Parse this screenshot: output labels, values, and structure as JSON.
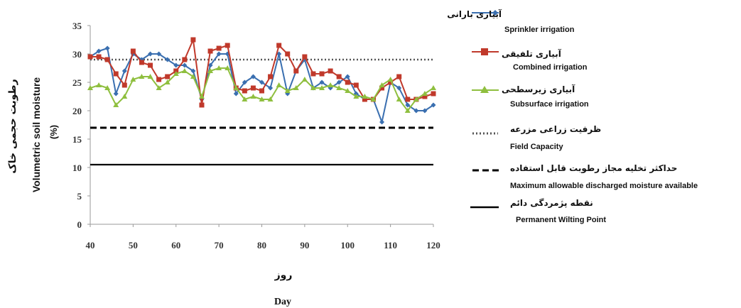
{
  "chart_data": {
    "type": "line",
    "xlabel_fa": "روز",
    "xlabel_en": "Day",
    "ylabel_fa": "رطوبت حجمی خاک",
    "ylabel_en": "Volumetric soil moisture",
    "ylabel_unit": "(%)",
    "xlim": [
      40,
      120
    ],
    "ylim": [
      0,
      35
    ],
    "x_ticks": [
      40,
      50,
      60,
      70,
      80,
      90,
      100,
      110,
      120
    ],
    "y_ticks": [
      0,
      5,
      10,
      15,
      20,
      25,
      30,
      35
    ],
    "grid": false,
    "legend_position": "right",
    "series": [
      {
        "name": "آبیاری بارانی",
        "name_en": "Sprinkler irrigation",
        "color": "#3a6fb0",
        "marker": "diamond",
        "x": [
          40,
          42,
          44,
          46,
          48,
          50,
          52,
          54,
          56,
          58,
          60,
          62,
          64,
          66,
          68,
          70,
          72,
          74,
          76,
          78,
          80,
          82,
          84,
          86,
          88,
          90,
          92,
          94,
          96,
          98,
          100,
          102,
          104,
          106,
          108,
          110,
          112,
          114,
          116,
          118,
          120
        ],
        "y": [
          29.5,
          30.5,
          31,
          23,
          27,
          30,
          29,
          30,
          30,
          29,
          28,
          28,
          27,
          22,
          28,
          30,
          30,
          23,
          25,
          26,
          25,
          24,
          30,
          23,
          27,
          29,
          24,
          25,
          24,
          25,
          26,
          23,
          22,
          22,
          18,
          25,
          24,
          21,
          20,
          20,
          21
        ]
      },
      {
        "name": "آبیاری تلفیقی",
        "name_en": "Combined irrigation",
        "color": "#c0392b",
        "marker": "square",
        "x": [
          40,
          42,
          44,
          46,
          48,
          50,
          52,
          54,
          56,
          58,
          60,
          62,
          64,
          66,
          68,
          70,
          72,
          74,
          76,
          78,
          80,
          82,
          84,
          86,
          88,
          90,
          92,
          94,
          96,
          98,
          100,
          102,
          104,
          106,
          108,
          110,
          112,
          114,
          116,
          118,
          120
        ],
        "y": [
          29.5,
          29.5,
          29,
          26.5,
          24.5,
          30.5,
          28.5,
          28,
          25.5,
          26,
          27,
          29,
          32.5,
          21,
          30.5,
          31,
          31.5,
          24,
          23.5,
          24,
          23.5,
          26,
          31.5,
          30,
          27,
          29.5,
          26.5,
          26.5,
          27,
          26,
          25,
          24.5,
          22,
          22,
          24,
          25,
          26,
          22,
          22,
          22.5,
          23
        ]
      },
      {
        "name": "آبیاری زیرسطحی",
        "name_en": "Subsurface irrigation",
        "color": "#8fbf3f",
        "marker": "triangle",
        "x": [
          40,
          42,
          44,
          46,
          48,
          50,
          52,
          54,
          56,
          58,
          60,
          62,
          64,
          66,
          68,
          70,
          72,
          74,
          76,
          78,
          80,
          82,
          84,
          86,
          88,
          90,
          92,
          94,
          96,
          98,
          100,
          102,
          104,
          106,
          108,
          110,
          112,
          114,
          116,
          118,
          120
        ],
        "y": [
          24,
          24.5,
          24,
          21,
          22.5,
          25.5,
          26,
          26,
          24,
          25,
          26.5,
          27,
          26,
          22.5,
          27,
          27.5,
          27.5,
          24,
          22,
          22.5,
          22,
          22,
          24.5,
          23.5,
          24,
          25.5,
          24,
          24,
          24.5,
          24,
          23.5,
          22.5,
          22.5,
          22,
          24.5,
          25.5,
          22,
          20,
          22,
          23,
          24
        ]
      }
    ],
    "reference_lines": [
      {
        "name": "ظرفیت زراعی مزرعه",
        "name_en": "Field Capacity",
        "y": 29,
        "style": "dotted",
        "color": "#555555"
      },
      {
        "name": "حداکثر تخلیه مجاز رطوبت قابل استفاده",
        "name_en": "Maximum allowable discharged moisture available",
        "y": 17,
        "style": "dashed",
        "color": "#000000"
      },
      {
        "name": "نقطه پژمردگی دائم",
        "name_en": "Permanent Wilting Point",
        "y": 10.5,
        "style": "solid",
        "color": "#000000"
      }
    ]
  }
}
